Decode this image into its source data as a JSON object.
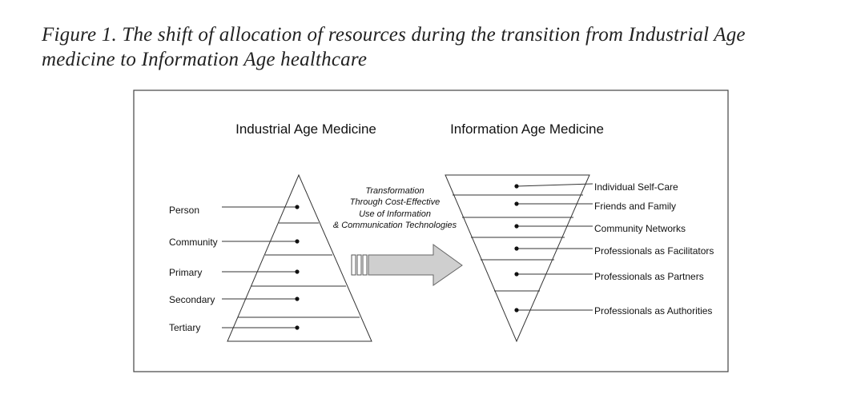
{
  "caption": {
    "line1": "Figure 1. The shift of allocation of resources during the transition from Industrial Age",
    "line2": "medicine to Information Age healthcare"
  },
  "diagram": {
    "left_title": "Industrial Age Medicine",
    "right_title": "Information Age Medicine",
    "left_levels": [
      "Person",
      "Community",
      "Primary",
      "Secondary",
      "Tertiary"
    ],
    "transformation_text": [
      "Transformation",
      "Through Cost-Effective",
      "Use of Information",
      "& Communication Technologies"
    ],
    "right_levels": [
      "Individual Self-Care",
      "Friends and Family",
      "Community Networks",
      "Professionals as Facilitators",
      "Professionals as Partners",
      "Professionals as Authorities"
    ]
  }
}
